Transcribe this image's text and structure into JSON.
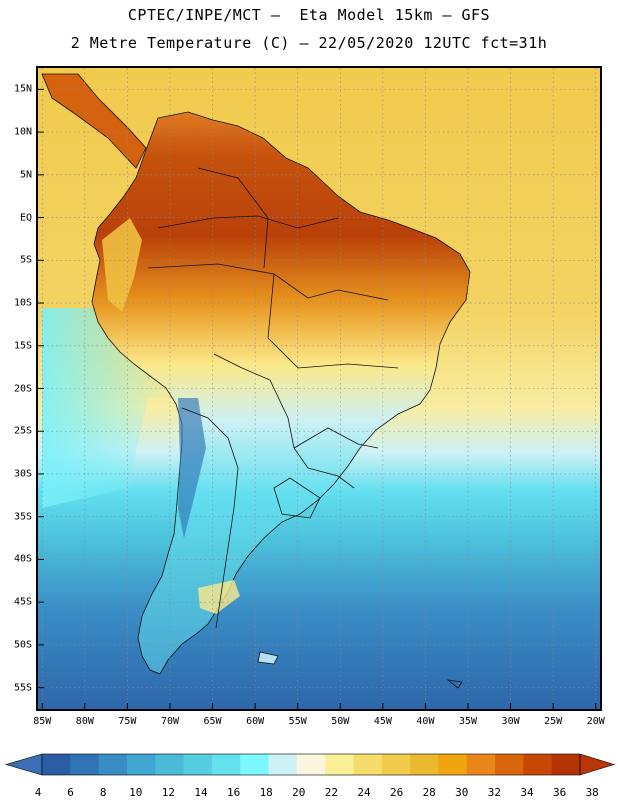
{
  "header": {
    "title_line1": "CPTEC/INPE/MCT –  Eta Model 15km – GFS",
    "title_line2": "2 Metre Temperature (C) – 22/05/2020 12UTC fct=31h"
  },
  "map": {
    "variable": "2 Metre Temperature",
    "units": "C",
    "lat_labels": [
      "15N",
      "10N",
      "5N",
      "EQ",
      "5S",
      "10S",
      "15S",
      "20S",
      "25S",
      "30S",
      "35S",
      "40S",
      "45S",
      "50S",
      "55S"
    ],
    "lat_values": [
      15,
      10,
      5,
      0,
      -5,
      -10,
      -15,
      -20,
      -25,
      -30,
      -35,
      -40,
      -45,
      -50,
      -55
    ],
    "lon_labels": [
      "85W",
      "80W",
      "75W",
      "70W",
      "65W",
      "60W",
      "55W",
      "50W",
      "45W",
      "40W",
      "35W",
      "30W",
      "25W",
      "20W"
    ],
    "lon_values": [
      -85,
      -80,
      -75,
      -70,
      -65,
      -60,
      -55,
      -50,
      -45,
      -40,
      -35,
      -30,
      -25,
      -20
    ],
    "lon_range": [
      -85.5,
      -19.5
    ],
    "lat_range": [
      -57.5,
      17.5
    ]
  },
  "colorbar": {
    "labels": [
      "4",
      "6",
      "8",
      "10",
      "12",
      "14",
      "16",
      "18",
      "20",
      "22",
      "24",
      "26",
      "28",
      "30",
      "32",
      "34",
      "36",
      "38"
    ],
    "colors": [
      "#2a5da3",
      "#2f74b5",
      "#3a8cc4",
      "#41a6d1",
      "#4cbad9",
      "#57cde3",
      "#63e2ee",
      "#7af8fb",
      "#cdf3f7",
      "#fdf6de",
      "#fbf096",
      "#f6dd6b",
      "#f0cb4c",
      "#ebb830",
      "#f0a510",
      "#e8861a",
      "#d9650d",
      "#c74705",
      "#b33402"
    ],
    "low_arrow_color": "#3a6fb5",
    "high_arrow_color": "#b8350a"
  }
}
